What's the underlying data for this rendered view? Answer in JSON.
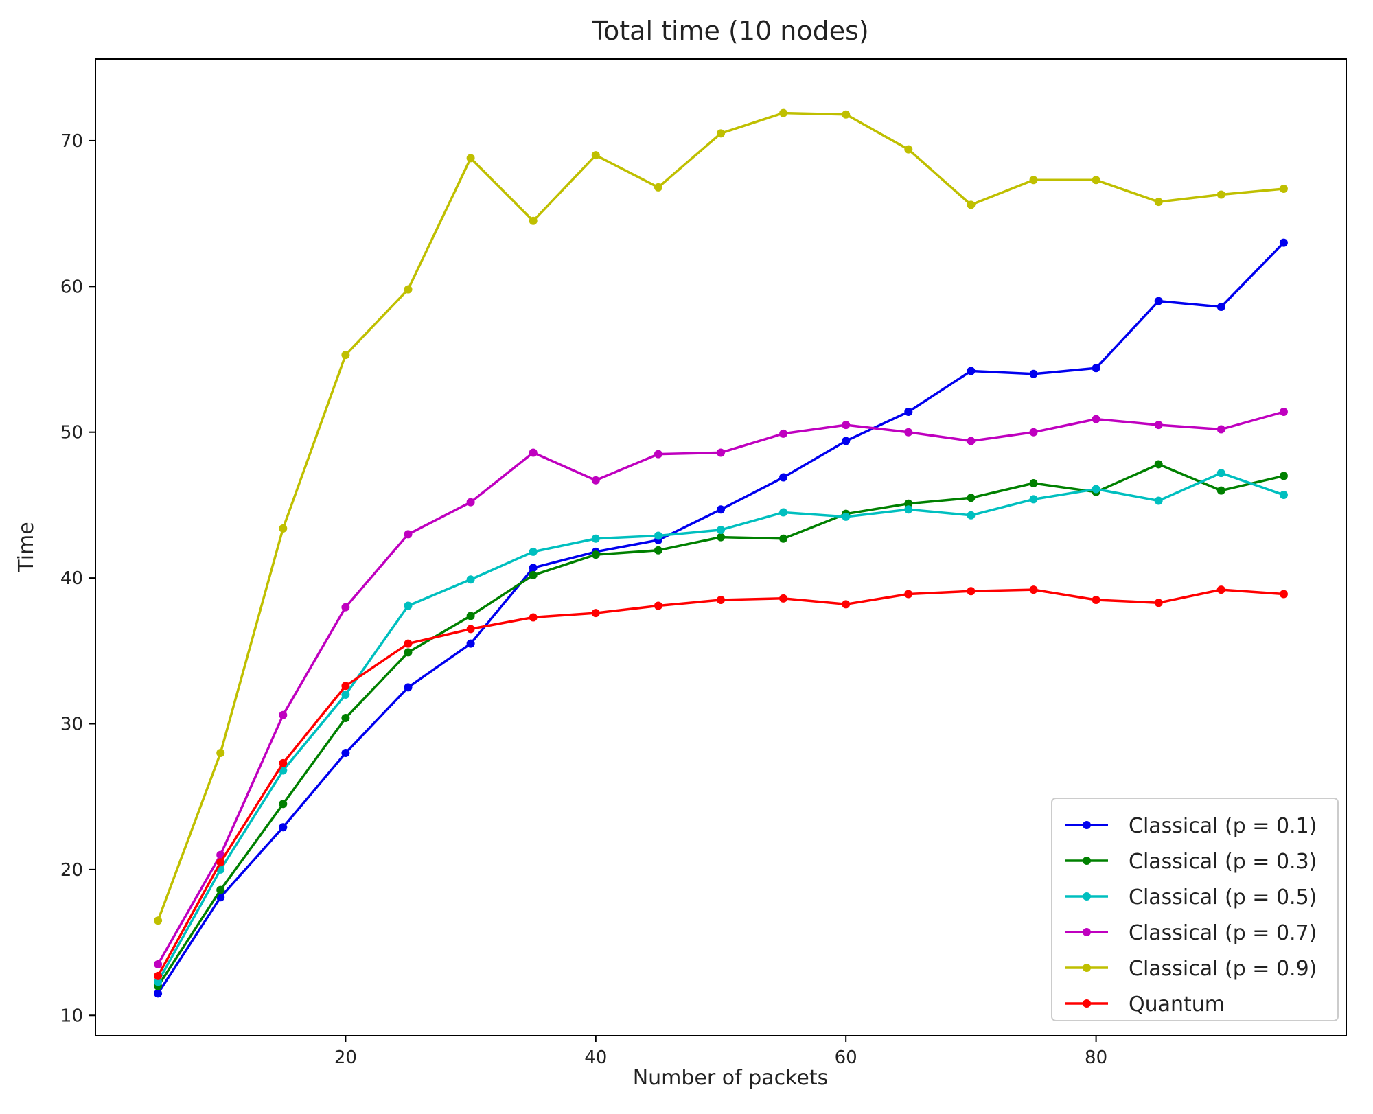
{
  "chart_data": {
    "type": "line",
    "title": "Total time (10 nodes)",
    "xlabel": "Number of packets",
    "ylabel": "Time",
    "xlim": [
      0,
      100
    ],
    "ylim": [
      8.6,
      75.6
    ],
    "xticks": [
      20,
      40,
      60,
      80
    ],
    "yticks": [
      10,
      20,
      30,
      40,
      50,
      60,
      70
    ],
    "grid": false,
    "legend_position": "lower-right",
    "x": [
      5,
      10,
      15,
      20,
      25,
      30,
      35,
      40,
      45,
      50,
      55,
      60,
      65,
      70,
      75,
      80,
      85,
      90,
      95
    ],
    "series": [
      {
        "name": "Classical (p = 0.1)",
        "color": "#0000ee",
        "values": [
          11.5,
          18.1,
          22.9,
          28.0,
          32.5,
          35.5,
          40.7,
          41.8,
          42.6,
          44.7,
          46.9,
          49.4,
          51.4,
          54.2,
          54.0,
          54.4,
          59.0,
          58.6,
          63.0
        ]
      },
      {
        "name": "Classical (p = 0.3)",
        "color": "#008000",
        "values": [
          12.0,
          18.6,
          24.5,
          30.4,
          34.9,
          37.4,
          40.2,
          41.6,
          41.9,
          42.8,
          42.7,
          44.4,
          45.1,
          45.5,
          46.5,
          45.9,
          47.8,
          46.0,
          47.0
        ]
      },
      {
        "name": "Classical (p = 0.5)",
        "color": "#00bfbf",
        "values": [
          12.3,
          20.0,
          26.8,
          32.0,
          38.1,
          39.9,
          41.8,
          42.7,
          42.9,
          43.3,
          44.5,
          44.2,
          44.7,
          44.3,
          45.4,
          46.1,
          45.3,
          47.2,
          45.7
        ]
      },
      {
        "name": "Classical (p = 0.7)",
        "color": "#bf00bf",
        "values": [
          13.5,
          21.0,
          30.6,
          38.0,
          43.0,
          45.2,
          48.6,
          46.7,
          48.5,
          48.6,
          49.9,
          50.5,
          50.0,
          49.4,
          50.0,
          50.9,
          50.5,
          50.2,
          51.4
        ]
      },
      {
        "name": "Classical (p = 0.9)",
        "color": "#bfbf00",
        "values": [
          16.5,
          28.0,
          43.4,
          55.3,
          59.8,
          68.8,
          64.5,
          69.0,
          66.8,
          70.5,
          71.9,
          71.8,
          69.4,
          65.6,
          67.3,
          67.3,
          65.8,
          66.3,
          66.7
        ]
      },
      {
        "name": "Quantum",
        "color": "#ff0000",
        "values": [
          12.7,
          20.5,
          27.3,
          32.6,
          35.5,
          36.5,
          37.3,
          37.6,
          38.1,
          38.5,
          38.6,
          38.2,
          38.9,
          39.1,
          39.2,
          38.5,
          38.3,
          39.2,
          38.9
        ]
      }
    ]
  }
}
